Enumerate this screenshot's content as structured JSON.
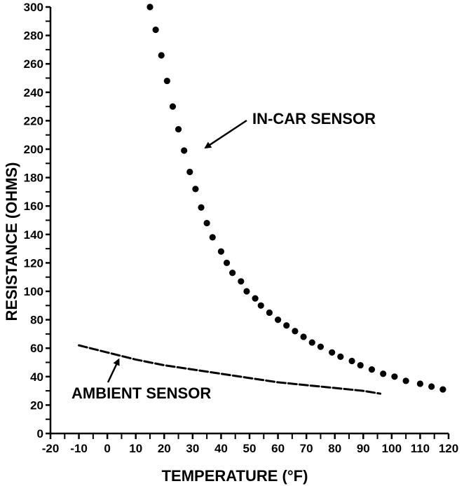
{
  "chart_data": {
    "type": "line",
    "xlabel": "TEMPERATURE (°F)",
    "ylabel": "RESISTANCE (OHMS)",
    "xlim": [
      -20,
      120
    ],
    "ylim": [
      0,
      300
    ],
    "x_ticks": [
      "-20",
      "-10",
      "0",
      "10",
      "20",
      "30",
      "40",
      "50",
      "60",
      "70",
      "80",
      "90",
      "100",
      "110",
      "120"
    ],
    "y_ticks": [
      "0",
      "20",
      "40",
      "60",
      "80",
      "100",
      "120",
      "140",
      "160",
      "180",
      "200",
      "220",
      "240",
      "260",
      "280",
      "300"
    ],
    "grid": false,
    "series": [
      {
        "name": "IN-CAR SENSOR",
        "style": "dotted",
        "x": [
          15,
          17,
          19,
          21,
          23,
          25,
          27,
          29,
          31,
          33,
          35,
          37,
          40,
          42,
          44,
          47,
          49,
          52,
          54,
          57,
          60,
          63,
          66,
          69,
          72,
          75,
          79,
          82,
          86,
          89,
          93,
          97,
          101,
          105,
          110,
          114,
          118
        ],
        "y": [
          300,
          284,
          266,
          248,
          230,
          214,
          199,
          184,
          172,
          159,
          148,
          138,
          128,
          120,
          113,
          107,
          100,
          95,
          90,
          85,
          80,
          76,
          72,
          68,
          64,
          61,
          57,
          54,
          51,
          48,
          45,
          42,
          40,
          37,
          35,
          33,
          31
        ]
      },
      {
        "name": "AMBIENT SENSOR",
        "style": "dashed",
        "x": [
          -10,
          0,
          10,
          20,
          30,
          40,
          50,
          60,
          70,
          80,
          90,
          96
        ],
        "y": [
          62,
          57,
          52,
          48,
          45,
          42,
          39,
          36,
          34,
          32,
          30,
          28
        ]
      }
    ],
    "annotations": [
      {
        "text": "IN-CAR SENSOR",
        "points_to": [
          32,
          199
        ]
      },
      {
        "text": "AMBIENT SENSOR",
        "points_to": [
          5,
          55
        ]
      }
    ]
  }
}
